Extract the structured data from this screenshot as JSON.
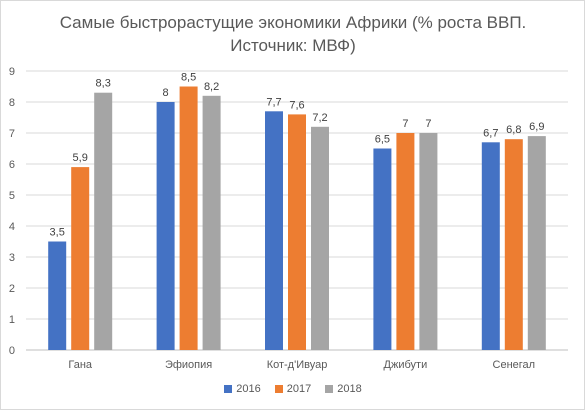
{
  "title_line1": "Самые быстрорастущие экономики Африки (% роста ВВП.",
  "title_line2": "Источник: МВФ)",
  "chart_data": {
    "type": "bar",
    "title": "Самые быстрорастущие экономики Африки (% роста ВВП. Источник: МВФ)",
    "categories": [
      "Гана",
      "Эфиопия",
      "Кот-д'Ивуар",
      "Джибути",
      "Сенегал"
    ],
    "series": [
      {
        "name": "2016",
        "color": "#4472c4",
        "values": [
          3.5,
          8,
          7.7,
          6.5,
          6.7
        ],
        "labels": [
          "3,5",
          "8",
          "7,7",
          "6,5",
          "6,7"
        ]
      },
      {
        "name": "2017",
        "color": "#ed7d31",
        "values": [
          5.9,
          8.5,
          7.6,
          7,
          6.8
        ],
        "labels": [
          "5,9",
          "8,5",
          "7,6",
          "7",
          "6,8"
        ]
      },
      {
        "name": "2018",
        "color": "#a5a5a5",
        "values": [
          8.3,
          8.2,
          7.2,
          7,
          6.9
        ],
        "labels": [
          "8,3",
          "8,2",
          "7,2",
          "7",
          "6,9"
        ]
      }
    ],
    "ylim": [
      0,
      9
    ],
    "yticks": [
      0,
      1,
      2,
      3,
      4,
      5,
      6,
      7,
      8,
      9
    ],
    "grid": true,
    "legend": "bottom"
  }
}
